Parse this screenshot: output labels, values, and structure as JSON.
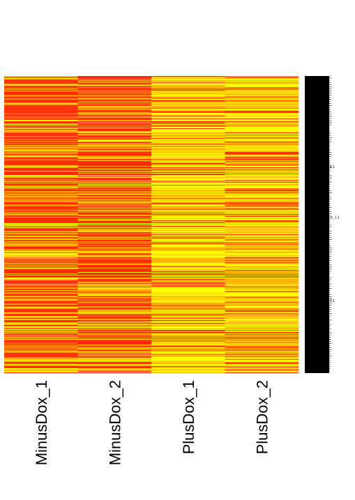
{
  "chart_data": {
    "type": "heatmap",
    "title": "",
    "xlabel": "",
    "ylabel": "",
    "columns": [
      "MinusDox_1",
      "MinusDox_2",
      "PlusDox_1",
      "PlusDox_2"
    ],
    "row_count": 420,
    "colors": {
      "low": "#ffff00",
      "mid": "#ffb000",
      "high": "#ff2a00"
    },
    "value_range": [
      0,
      1
    ],
    "visible_row_labels": [
      "6.1",
      "m, 1.1",
      "4.1"
    ],
    "visible_row_label_positions": [
      0.31,
      0.48,
      0.76
    ],
    "column_mean_levels": [
      0.62,
      0.6,
      0.38,
      0.4
    ],
    "legend": "none",
    "grid": false
  }
}
